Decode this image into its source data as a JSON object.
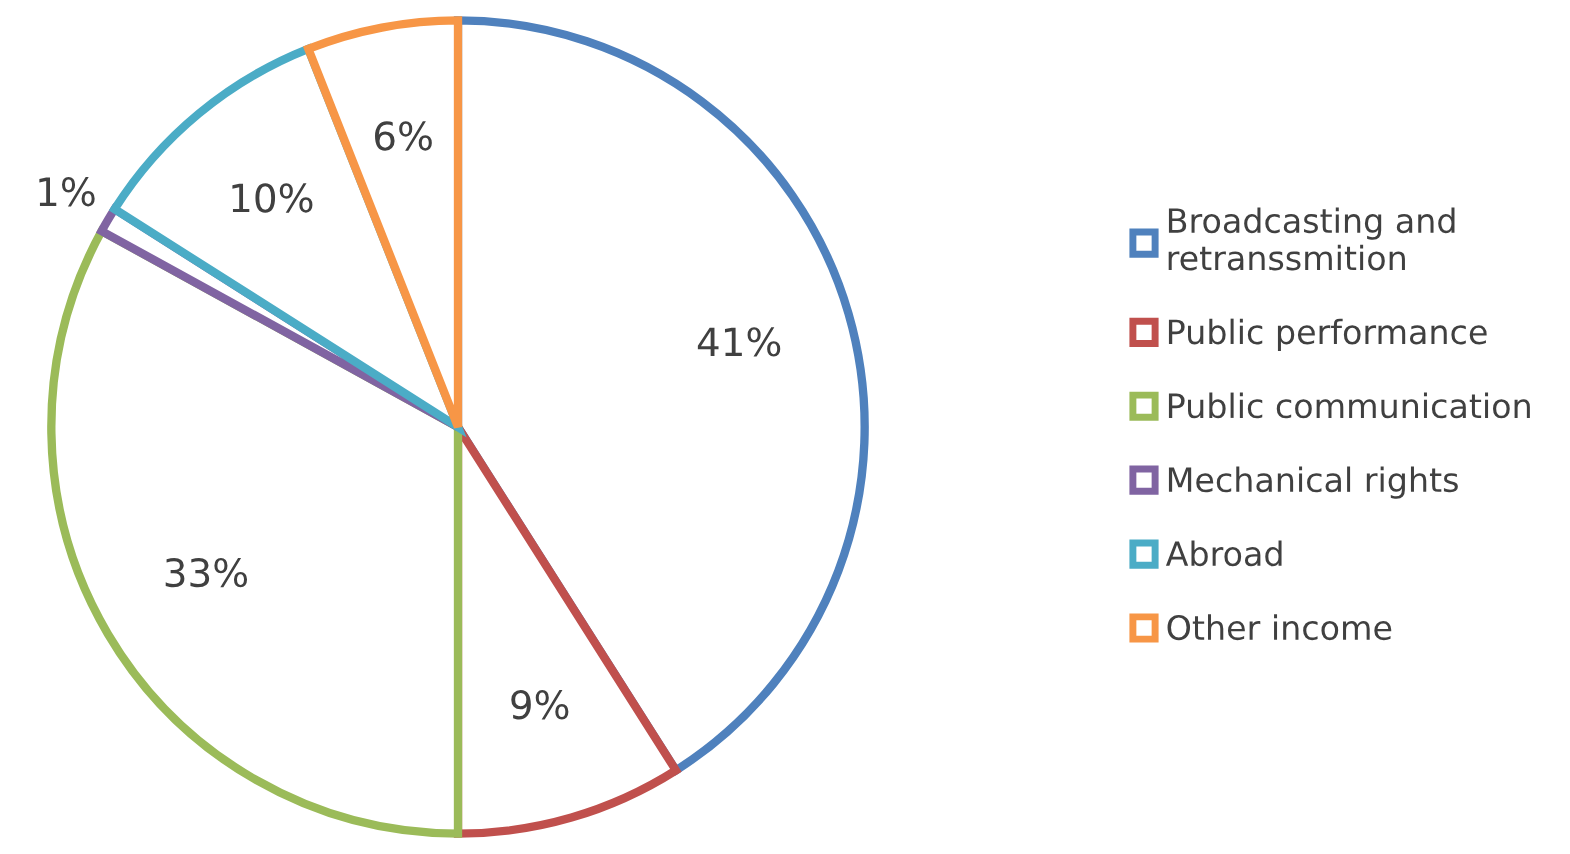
{
  "chart_data": {
    "type": "pie",
    "categories": [
      "Broadcasting and\nretranssmition",
      "Public performance",
      "Public communication",
      "Mechanical rights",
      "Abroad",
      "Other income"
    ],
    "values": [
      41,
      9,
      33,
      1,
      10,
      6
    ],
    "colors": [
      "#4f81bd",
      "#c0504d",
      "#9bbb59",
      "#8064a2",
      "#4bacc6",
      "#f79646"
    ],
    "value_labels": [
      "41%",
      "9%",
      "33%",
      "1%",
      "10%",
      "6%"
    ],
    "legend": "right"
  }
}
